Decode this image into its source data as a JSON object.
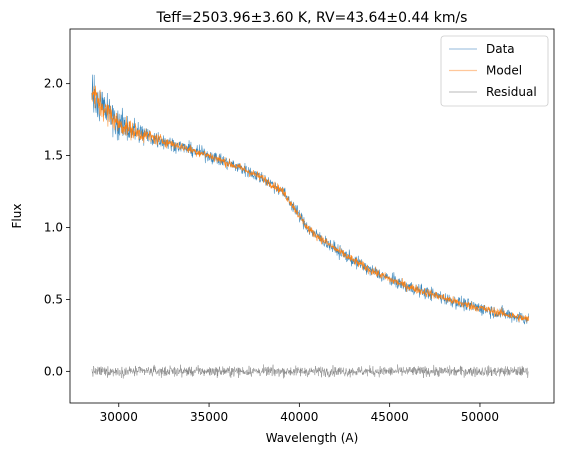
{
  "chart_data": {
    "type": "line",
    "title": "Teff=2503.96±3.60 K, RV=43.64±0.44 km/s",
    "xlabel": "Wavelength (A)",
    "ylabel": "Flux",
    "xlim": [
      27300,
      54100
    ],
    "ylim": [
      -0.22,
      2.38
    ],
    "x_ticks": [
      30000,
      35000,
      40000,
      45000,
      50000
    ],
    "x_tick_labels": [
      "30000",
      "35000",
      "40000",
      "45000",
      "50000"
    ],
    "y_ticks": [
      0.0,
      0.5,
      1.0,
      1.5,
      2.0
    ],
    "y_tick_labels": [
      "0.0",
      "0.5",
      "1.0",
      "1.5",
      "2.0"
    ],
    "grid": false,
    "legend_position": "top-right",
    "series": [
      {
        "name": "Data",
        "color": "#1f77b4",
        "x": [
          28500,
          29000,
          30000,
          31000,
          32000,
          33000,
          34000,
          35000,
          36000,
          37000,
          38000,
          39000,
          39500,
          40000,
          40500,
          41000,
          42000,
          43000,
          44000,
          45000,
          46000,
          47000,
          48000,
          49000,
          50000,
          51000,
          52000,
          52700
        ],
        "y": [
          1.95,
          1.85,
          1.72,
          1.66,
          1.62,
          1.58,
          1.54,
          1.5,
          1.45,
          1.4,
          1.34,
          1.26,
          1.18,
          1.08,
          0.99,
          0.94,
          0.85,
          0.77,
          0.7,
          0.64,
          0.59,
          0.55,
          0.51,
          0.47,
          0.44,
          0.41,
          0.38,
          0.36
        ]
      },
      {
        "name": "Model",
        "color": "#ff7f0e",
        "x": [
          28500,
          29000,
          30000,
          31000,
          32000,
          33000,
          34000,
          35000,
          36000,
          37000,
          38000,
          39000,
          39500,
          40000,
          40500,
          41000,
          42000,
          43000,
          44000,
          45000,
          46000,
          47000,
          48000,
          49000,
          50000,
          51000,
          52000,
          52700
        ],
        "y": [
          1.95,
          1.85,
          1.72,
          1.66,
          1.62,
          1.58,
          1.54,
          1.5,
          1.45,
          1.4,
          1.34,
          1.26,
          1.18,
          1.08,
          0.99,
          0.94,
          0.85,
          0.77,
          0.7,
          0.64,
          0.59,
          0.55,
          0.51,
          0.47,
          0.44,
          0.41,
          0.38,
          0.36
        ]
      },
      {
        "name": "Residual",
        "color": "#7f7f7f",
        "x": [
          28500,
          52700
        ],
        "y": [
          0.0,
          0.0
        ]
      }
    ]
  }
}
